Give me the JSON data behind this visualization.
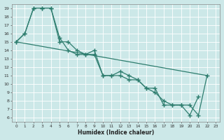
{
  "xlabel": "Humidex (Indice chaleur)",
  "bg_color": "#cce8e8",
  "grid_color": "#aacccc",
  "line_color": "#2e7d6e",
  "xlim": [
    -0.5,
    23.5
  ],
  "ylim": [
    5.5,
    19.5
  ],
  "xticks": [
    0,
    1,
    2,
    3,
    4,
    5,
    6,
    7,
    8,
    9,
    10,
    11,
    12,
    13,
    14,
    15,
    16,
    17,
    18,
    19,
    20,
    21,
    22,
    23
  ],
  "yticks": [
    6,
    7,
    8,
    9,
    10,
    11,
    12,
    13,
    14,
    15,
    16,
    17,
    18,
    19
  ],
  "line1_x": [
    0,
    1,
    2,
    3,
    4,
    5,
    6,
    7,
    8,
    9,
    10,
    11,
    12,
    13,
    14,
    15,
    16,
    17,
    18,
    19,
    20,
    21
  ],
  "line1_y": [
    15.0,
    16.0,
    19.0,
    19.0,
    19.0,
    15.0,
    15.0,
    14.0,
    13.5,
    14.0,
    11.0,
    11.0,
    11.5,
    11.0,
    10.5,
    9.5,
    9.0,
    8.0,
    7.5,
    7.5,
    6.3,
    8.5
  ],
  "line2_x": [
    0,
    1,
    2,
    3,
    4,
    5,
    6,
    7,
    8,
    9,
    10,
    11,
    12,
    13,
    14,
    15,
    16,
    17,
    18,
    19,
    20,
    21,
    22
  ],
  "line2_y": [
    15.0,
    16.0,
    19.0,
    19.0,
    19.0,
    15.5,
    14.0,
    13.5,
    13.5,
    13.5,
    11.0,
    11.0,
    11.0,
    10.5,
    10.5,
    9.5,
    9.5,
    7.5,
    7.5,
    7.5,
    7.5,
    6.3,
    11.0
  ],
  "line3_x": [
    0,
    22
  ],
  "line3_y": [
    15.0,
    11.0
  ]
}
